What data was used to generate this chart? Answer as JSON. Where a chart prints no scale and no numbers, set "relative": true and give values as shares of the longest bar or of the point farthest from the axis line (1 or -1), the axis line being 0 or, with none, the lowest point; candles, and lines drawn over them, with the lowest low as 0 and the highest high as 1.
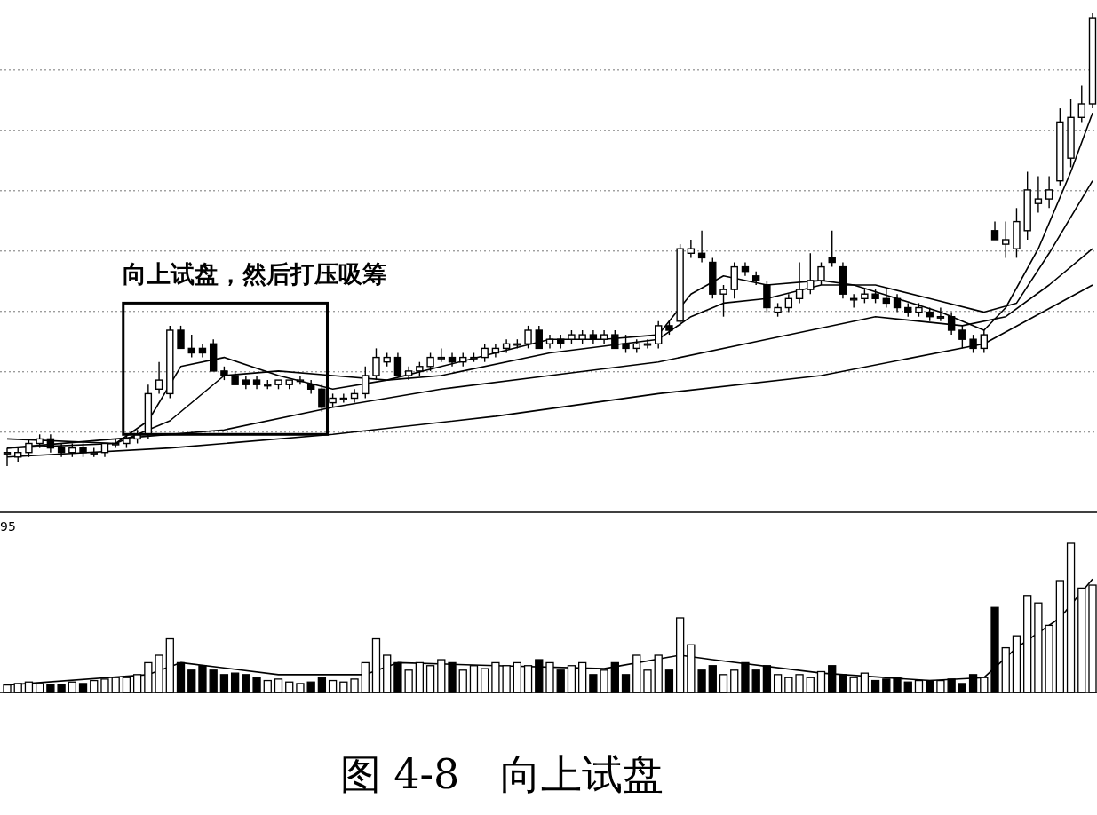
{
  "chart_data": [
    {
      "type": "candlestick",
      "relative": true,
      "grid": "y",
      "categories": [
        null,
        null,
        null,
        null,
        null,
        null,
        null,
        null,
        null,
        null,
        null,
        null,
        null,
        null,
        null,
        null,
        null,
        null,
        null,
        null,
        null,
        null,
        null,
        null,
        null,
        null,
        null,
        null,
        null,
        null,
        null,
        null,
        null,
        null,
        null,
        null,
        null,
        null,
        null,
        null,
        null,
        null,
        null,
        null,
        null,
        null,
        null,
        null,
        null,
        null,
        null,
        null,
        null,
        null,
        null,
        null,
        null,
        null,
        null,
        null,
        null,
        null,
        null,
        null,
        null,
        null,
        null,
        null,
        null,
        null,
        null,
        null,
        null,
        null,
        null,
        null,
        null,
        null,
        null,
        null,
        null,
        null,
        null,
        null,
        null,
        null,
        null,
        null,
        null,
        null,
        null,
        null,
        null,
        null,
        null,
        null,
        null,
        null,
        null,
        null,
        null
      ],
      "ohlc": [
        [
          0.03,
          0.04,
          0,
          0.03
        ],
        [
          0.02,
          0.04,
          0.01,
          0.03
        ],
        [
          0.03,
          0.06,
          0.02,
          0.05
        ],
        [
          0.05,
          0.07,
          0.04,
          0.06
        ],
        [
          0.06,
          0.07,
          0.03,
          0.04
        ],
        [
          0.04,
          0.05,
          0.02,
          0.03
        ],
        [
          0.03,
          0.05,
          0.02,
          0.04
        ],
        [
          0.04,
          0.05,
          0.02,
          0.03
        ],
        [
          0.03,
          0.04,
          0.02,
          0.03
        ],
        [
          0.03,
          0.05,
          0.02,
          0.05
        ],
        [
          0.05,
          0.06,
          0.04,
          0.05
        ],
        [
          0.05,
          0.07,
          0.04,
          0.06
        ],
        [
          0.06,
          0.08,
          0.05,
          0.07
        ],
        [
          0.07,
          0.18,
          0.06,
          0.16
        ],
        [
          0.17,
          0.23,
          0.16,
          0.19
        ],
        [
          0.16,
          0.31,
          0.15,
          0.3
        ],
        [
          0.3,
          0.31,
          0.26,
          0.26
        ],
        [
          0.26,
          0.29,
          0.24,
          0.25
        ],
        [
          0.26,
          0.27,
          0.24,
          0.25
        ],
        [
          0.27,
          0.28,
          0.21,
          0.21
        ],
        [
          0.21,
          0.22,
          0.19,
          0.2
        ],
        [
          0.2,
          0.21,
          0.18,
          0.18
        ],
        [
          0.19,
          0.2,
          0.17,
          0.18
        ],
        [
          0.19,
          0.2,
          0.17,
          0.18
        ],
        [
          0.18,
          0.19,
          0.17,
          0.18
        ],
        [
          0.18,
          0.19,
          0.17,
          0.19
        ],
        [
          0.18,
          0.19,
          0.17,
          0.19
        ],
        [
          0.19,
          0.2,
          0.18,
          0.19
        ],
        [
          0.18,
          0.19,
          0.16,
          0.17
        ],
        [
          0.17,
          0.18,
          0.12,
          0.13
        ],
        [
          0.14,
          0.16,
          0.13,
          0.15
        ],
        [
          0.15,
          0.16,
          0.14,
          0.15
        ],
        [
          0.15,
          0.17,
          0.14,
          0.16
        ],
        [
          0.16,
          0.22,
          0.15,
          0.2
        ],
        [
          0.2,
          0.26,
          0.19,
          0.24
        ],
        [
          0.23,
          0.25,
          0.22,
          0.24
        ],
        [
          0.24,
          0.25,
          0.2,
          0.2
        ],
        [
          0.2,
          0.22,
          0.19,
          0.21
        ],
        [
          0.21,
          0.23,
          0.2,
          0.22
        ],
        [
          0.22,
          0.25,
          0.21,
          0.24
        ],
        [
          0.24,
          0.26,
          0.23,
          0.24
        ],
        [
          0.24,
          0.25,
          0.22,
          0.23
        ],
        [
          0.23,
          0.25,
          0.22,
          0.24
        ],
        [
          0.24,
          0.25,
          0.23,
          0.24
        ],
        [
          0.24,
          0.27,
          0.23,
          0.26
        ],
        [
          0.25,
          0.27,
          0.24,
          0.26
        ],
        [
          0.26,
          0.28,
          0.25,
          0.27
        ],
        [
          0.27,
          0.28,
          0.26,
          0.27
        ],
        [
          0.27,
          0.31,
          0.26,
          0.3
        ],
        [
          0.3,
          0.31,
          0.26,
          0.26
        ],
        [
          0.27,
          0.29,
          0.26,
          0.28
        ],
        [
          0.28,
          0.29,
          0.26,
          0.27
        ],
        [
          0.28,
          0.3,
          0.27,
          0.29
        ],
        [
          0.28,
          0.3,
          0.27,
          0.29
        ],
        [
          0.29,
          0.3,
          0.27,
          0.28
        ],
        [
          0.28,
          0.3,
          0.27,
          0.29
        ],
        [
          0.29,
          0.3,
          0.26,
          0.26
        ],
        [
          0.27,
          0.29,
          0.25,
          0.26
        ],
        [
          0.26,
          0.28,
          0.25,
          0.27
        ],
        [
          0.27,
          0.28,
          0.26,
          0.27
        ],
        [
          0.27,
          0.32,
          0.26,
          0.31
        ],
        [
          0.31,
          0.32,
          0.29,
          0.3
        ],
        [
          0.32,
          0.49,
          0.31,
          0.48
        ],
        [
          0.47,
          0.5,
          0.46,
          0.48
        ],
        [
          0.47,
          0.52,
          0.45,
          0.46
        ],
        [
          0.45,
          0.46,
          0.37,
          0.38
        ],
        [
          0.38,
          0.4,
          0.33,
          0.39
        ],
        [
          0.39,
          0.45,
          0.37,
          0.44
        ],
        [
          0.44,
          0.45,
          0.42,
          0.43
        ],
        [
          0.42,
          0.43,
          0.4,
          0.41
        ],
        [
          0.4,
          0.41,
          0.34,
          0.35
        ],
        [
          0.34,
          0.36,
          0.33,
          0.35
        ],
        [
          0.35,
          0.38,
          0.34,
          0.37
        ],
        [
          0.37,
          0.45,
          0.36,
          0.39
        ],
        [
          0.39,
          0.47,
          0.38,
          0.41
        ],
        [
          0.41,
          0.45,
          0.4,
          0.44
        ],
        [
          0.46,
          0.52,
          0.44,
          0.45
        ],
        [
          0.44,
          0.45,
          0.37,
          0.38
        ],
        [
          0.37,
          0.38,
          0.35,
          0.37
        ],
        [
          0.37,
          0.39,
          0.36,
          0.38
        ],
        [
          0.38,
          0.39,
          0.36,
          0.37
        ],
        [
          0.37,
          0.39,
          0.35,
          0.36
        ],
        [
          0.37,
          0.38,
          0.34,
          0.35
        ],
        [
          0.35,
          0.36,
          0.33,
          0.34
        ],
        [
          0.34,
          0.36,
          0.33,
          0.35
        ],
        [
          0.34,
          0.35,
          0.32,
          0.33
        ],
        [
          0.33,
          0.35,
          0.32,
          0.33
        ],
        [
          0.33,
          0.34,
          0.29,
          0.3
        ],
        [
          0.3,
          0.31,
          0.26,
          0.28
        ],
        [
          0.28,
          0.29,
          0.25,
          0.26
        ],
        [
          0.26,
          0.3,
          0.25,
          0.29
        ],
        [
          0.52,
          0.54,
          0.5,
          0.5
        ],
        [
          0.49,
          0.54,
          0.46,
          0.5
        ],
        [
          0.48,
          0.57,
          0.46,
          0.54
        ],
        [
          0.52,
          0.65,
          0.5,
          0.61
        ],
        [
          0.58,
          0.64,
          0.56,
          0.59
        ],
        [
          0.59,
          0.64,
          0.57,
          0.61
        ],
        [
          0.63,
          0.79,
          0.62,
          0.76
        ],
        [
          0.68,
          0.81,
          0.66,
          0.77
        ],
        [
          0.77,
          0.84,
          0.76,
          0.8
        ],
        [
          0.8,
          1,
          0.79,
          0.99
        ]
      ],
      "series": [
        {
          "type": "line",
          "color": "#000000",
          "values": [
            0.04,
            null,
            null,
            null,
            null,
            null,
            null,
            null,
            null,
            null,
            0.05,
            null,
            null,
            0.1,
            null,
            null,
            0.22,
            null,
            null,
            null,
            0.24,
            null,
            null,
            null,
            null,
            0.2,
            null,
            null,
            null,
            null,
            0.17,
            null,
            null,
            null,
            null,
            0.19,
            null,
            null,
            null,
            null,
            0.22,
            null,
            null,
            null,
            null,
            0.25,
            null,
            null,
            null,
            null,
            0.28,
            null,
            null,
            null,
            null,
            0.28,
            null,
            null,
            null,
            null,
            0.29,
            null,
            null,
            0.38,
            null,
            null,
            0.42,
            null,
            null,
            null,
            0.4,
            null,
            null,
            null,
            null,
            0.41,
            null,
            null,
            0.4,
            null,
            null,
            null,
            0.37,
            null,
            null,
            null,
            0.34,
            null,
            null,
            null,
            0.3,
            null,
            0.35,
            null,
            null,
            0.48,
            null,
            null,
            0.65,
            null,
            0.78
          ]
        },
        {
          "type": "line",
          "color": "#000000",
          "values": [
            0.06,
            null,
            null,
            null,
            null,
            null,
            null,
            null,
            null,
            null,
            0.05,
            null,
            null,
            null,
            null,
            0.1,
            null,
            null,
            null,
            null,
            0.2,
            null,
            null,
            null,
            null,
            0.21,
            null,
            null,
            null,
            null,
            0.2,
            null,
            null,
            null,
            null,
            0.19,
            null,
            null,
            null,
            null,
            0.2,
            null,
            null,
            null,
            null,
            null,
            null,
            null,
            null,
            null,
            0.25,
            null,
            null,
            null,
            null,
            null,
            null,
            null,
            null,
            null,
            0.28,
            null,
            null,
            0.33,
            null,
            null,
            0.36,
            null,
            null,
            null,
            0.37,
            null,
            null,
            null,
            null,
            0.4,
            null,
            null,
            null,
            null,
            0.4,
            null,
            null,
            null,
            null,
            0.37,
            null,
            null,
            null,
            null,
            0.34,
            null,
            null,
            0.36,
            null,
            null,
            0.47,
            null,
            null,
            null,
            0.63
          ]
        },
        {
          "type": "line",
          "color": "#000000",
          "values": [
            0.04,
            null,
            null,
            null,
            null,
            null,
            null,
            null,
            null,
            null,
            0.06,
            null,
            null,
            null,
            null,
            null,
            null,
            null,
            null,
            null,
            0.08,
            null,
            null,
            null,
            null,
            null,
            null,
            null,
            null,
            null,
            0.13,
            null,
            null,
            null,
            null,
            null,
            null,
            null,
            null,
            null,
            0.17,
            null,
            null,
            null,
            null,
            null,
            null,
            null,
            null,
            null,
            0.2,
            null,
            null,
            null,
            null,
            null,
            null,
            null,
            null,
            null,
            0.23,
            null,
            null,
            null,
            null,
            null,
            null,
            null,
            null,
            null,
            0.28,
            null,
            null,
            null,
            null,
            null,
            null,
            null,
            null,
            null,
            0.33,
            null,
            null,
            null,
            null,
            null,
            null,
            null,
            0.31,
            null,
            null,
            null,
            0.33,
            null,
            null,
            null,
            0.4,
            null,
            null,
            null,
            0.48
          ]
        },
        {
          "type": "line",
          "color": "#000000",
          "values": [
            0.02,
            null,
            null,
            null,
            null,
            null,
            null,
            null,
            null,
            null,
            null,
            null,
            null,
            null,
            null,
            0.04,
            null,
            null,
            null,
            null,
            null,
            null,
            null,
            null,
            null,
            null,
            null,
            null,
            null,
            null,
            0.07,
            null,
            null,
            null,
            null,
            null,
            null,
            null,
            null,
            null,
            null,
            null,
            null,
            null,
            null,
            0.11,
            null,
            null,
            null,
            null,
            null,
            null,
            null,
            null,
            null,
            null,
            null,
            null,
            null,
            null,
            0.16,
            null,
            null,
            null,
            null,
            null,
            null,
            null,
            null,
            null,
            null,
            null,
            null,
            null,
            null,
            0.2,
            null,
            null,
            null,
            null,
            null,
            null,
            null,
            null,
            null,
            null,
            null,
            null,
            null,
            null,
            0.27,
            null,
            null,
            null,
            null,
            null,
            null,
            null,
            null,
            null,
            0.4
          ]
        }
      ],
      "annotations": [
        "向上试盘，然后打压吸筹"
      ]
    },
    {
      "type": "bar",
      "relative": true,
      "categories": [
        null,
        null,
        null,
        null,
        null,
        null,
        null,
        null,
        null,
        null,
        null,
        null,
        null,
        null,
        null,
        null,
        null,
        null,
        null,
        null,
        null,
        null,
        null,
        null,
        null,
        null,
        null,
        null,
        null,
        null,
        null,
        null,
        null,
        null,
        null,
        null,
        null,
        null,
        null,
        null,
        null,
        null,
        null,
        null,
        null,
        null,
        null,
        null,
        null,
        null,
        null,
        null,
        null,
        null,
        null,
        null,
        null,
        null,
        null,
        null,
        null,
        null,
        null,
        null,
        null,
        null,
        null,
        null,
        null,
        null,
        null,
        null,
        null,
        null,
        null,
        null,
        null,
        null,
        null,
        null,
        null,
        null,
        null,
        null,
        null,
        null,
        null,
        null,
        null,
        null,
        null,
        null,
        null,
        null,
        null,
        null,
        null,
        null,
        null,
        null,
        null
      ],
      "values": [
        0.05,
        0.06,
        0.07,
        0.06,
        0.05,
        0.05,
        0.07,
        0.06,
        0.08,
        0.09,
        0.1,
        0.1,
        0.12,
        0.2,
        0.25,
        0.36,
        0.2,
        0.15,
        0.18,
        0.15,
        0.12,
        0.13,
        0.12,
        0.1,
        0.08,
        0.09,
        0.07,
        0.06,
        0.07,
        0.1,
        0.08,
        0.07,
        0.09,
        0.2,
        0.36,
        0.25,
        0.2,
        0.15,
        0.2,
        0.18,
        0.22,
        0.2,
        0.15,
        0.18,
        0.16,
        0.2,
        0.18,
        0.2,
        0.18,
        0.22,
        0.2,
        0.15,
        0.18,
        0.2,
        0.12,
        0.15,
        0.2,
        0.12,
        0.25,
        0.15,
        0.25,
        0.15,
        0.5,
        0.32,
        0.15,
        0.18,
        0.12,
        0.15,
        0.2,
        0.15,
        0.18,
        0.12,
        0.1,
        0.12,
        0.1,
        0.14,
        0.18,
        0.12,
        0.1,
        0.13,
        0.08,
        0.09,
        0.1,
        0.07,
        0.08,
        0.08,
        0.08,
        0.09,
        0.06,
        0.12,
        0.1,
        0.57,
        0.3,
        0.38,
        0.65,
        0.6,
        0.45,
        0.75,
        1,
        0.7,
        0.72
      ],
      "colors": [
        "#ffffff",
        "#ffffff",
        "#ffffff",
        "#ffffff",
        "#000000",
        "#000000",
        "#ffffff",
        "#000000",
        "#ffffff",
        "#ffffff",
        "#ffffff",
        "#ffffff",
        "#ffffff",
        "#ffffff",
        "#ffffff",
        "#ffffff",
        "#000000",
        "#000000",
        "#000000",
        "#000000",
        "#000000",
        "#000000",
        "#000000",
        "#000000",
        "#ffffff",
        "#ffffff",
        "#ffffff",
        "#ffffff",
        "#000000",
        "#000000",
        "#ffffff",
        "#ffffff",
        "#ffffff",
        "#ffffff",
        "#ffffff",
        "#ffffff",
        "#000000",
        "#ffffff",
        "#ffffff",
        "#ffffff",
        "#ffffff",
        "#000000",
        "#ffffff",
        "#ffffff",
        "#ffffff",
        "#ffffff",
        "#ffffff",
        "#ffffff",
        "#ffffff",
        "#000000",
        "#ffffff",
        "#000000",
        "#ffffff",
        "#ffffff",
        "#000000",
        "#ffffff",
        "#000000",
        "#000000",
        "#ffffff",
        "#ffffff",
        "#ffffff",
        "#000000",
        "#ffffff",
        "#ffffff",
        "#000000",
        "#000000",
        "#ffffff",
        "#ffffff",
        "#000000",
        "#000000",
        "#000000",
        "#ffffff",
        "#ffffff",
        "#ffffff",
        "#ffffff",
        "#ffffff",
        "#000000",
        "#000000",
        "#ffffff",
        "#ffffff",
        "#000000",
        "#000000",
        "#000000",
        "#000000",
        "#ffffff",
        "#000000",
        "#ffffff",
        "#000000",
        "#000000",
        "#000000",
        "#ffffff",
        "#000000",
        "#ffffff",
        "#ffffff",
        "#ffffff",
        "#ffffff",
        "#ffffff",
        "#ffffff",
        "#ffffff",
        "#ffffff",
        "#ffffff"
      ],
      "series": [
        {
          "type": "line",
          "color": "#000000",
          "values": [
            0.05,
            null,
            null,
            null,
            null,
            null,
            null,
            null,
            null,
            null,
            null,
            null,
            null,
            0.12,
            null,
            null,
            0.2,
            null,
            null,
            null,
            null,
            null,
            null,
            null,
            null,
            0.12,
            null,
            null,
            null,
            null,
            null,
            null,
            null,
            0.12,
            null,
            null,
            0.2,
            null,
            null,
            null,
            null,
            null,
            null,
            null,
            null,
            0.18,
            null,
            null,
            null,
            null,
            null,
            null,
            null,
            null,
            null,
            0.16,
            null,
            null,
            null,
            null,
            null,
            null,
            0.25,
            null,
            null,
            0.22,
            null,
            null,
            null,
            null,
            null,
            null,
            null,
            null,
            null,
            0.13,
            null,
            null,
            null,
            null,
            null,
            null,
            null,
            null,
            null,
            0.08,
            null,
            null,
            null,
            null,
            0.1,
            null,
            null,
            0.3,
            null,
            null,
            null,
            0.5,
            null,
            null,
            0.76
          ]
        }
      ],
      "annotations": [
        "95",
        "图 4-8　向上试盘"
      ]
    }
  ]
}
